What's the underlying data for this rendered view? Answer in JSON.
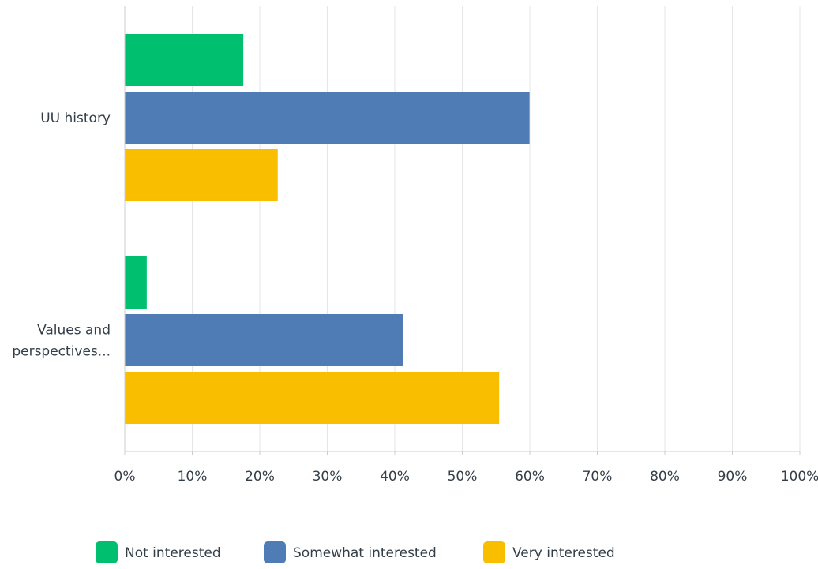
{
  "chart_data": {
    "type": "bar",
    "orientation": "horizontal",
    "categories": [
      [
        "UU history"
      ],
      [
        "Values and",
        "perspectives..."
      ]
    ],
    "series": [
      {
        "name": "Not interested",
        "color": "#00bf6f",
        "values": [
          17.5,
          3.2
        ]
      },
      {
        "name": "Somewhat interested",
        "color": "#507cb6",
        "values": [
          59.9,
          41.2
        ]
      },
      {
        "name": "Very interested",
        "color": "#f9be00",
        "values": [
          22.6,
          55.4
        ]
      }
    ],
    "xlim": [
      0,
      100
    ],
    "xticks": [
      "0%",
      "10%",
      "20%",
      "30%",
      "40%",
      "50%",
      "60%",
      "70%",
      "80%",
      "90%",
      "100%"
    ],
    "grid": true,
    "legend_position": "bottom"
  }
}
